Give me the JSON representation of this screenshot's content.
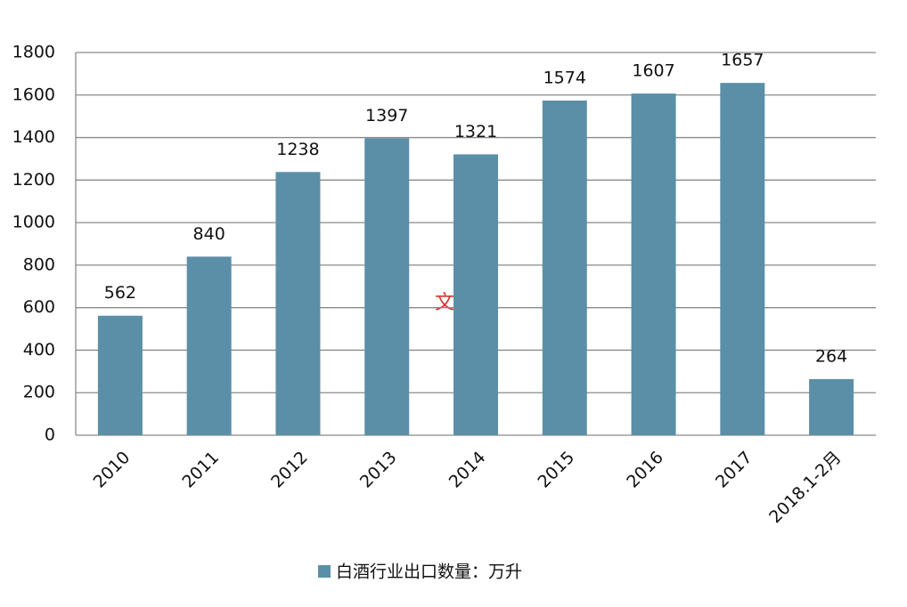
{
  "chart_data": {
    "type": "bar",
    "categories": [
      "2010",
      "2011",
      "2012",
      "2013",
      "2014",
      "2015",
      "2016",
      "2017",
      "2018.1-2月"
    ],
    "series": [
      {
        "name": "白酒行业出口数量：万升",
        "color": "#5b8fa8",
        "values": [
          562,
          840,
          1238,
          1397,
          1321,
          1574,
          1607,
          1657,
          264
        ]
      }
    ],
    "ylim": [
      0,
      1800
    ],
    "yticks": [
      0,
      200,
      400,
      600,
      800,
      1000,
      1200,
      1400,
      1600,
      1800
    ],
    "grid": true,
    "legend": "bottom",
    "annotation": "文本",
    "annotation_color": "#e03030"
  }
}
